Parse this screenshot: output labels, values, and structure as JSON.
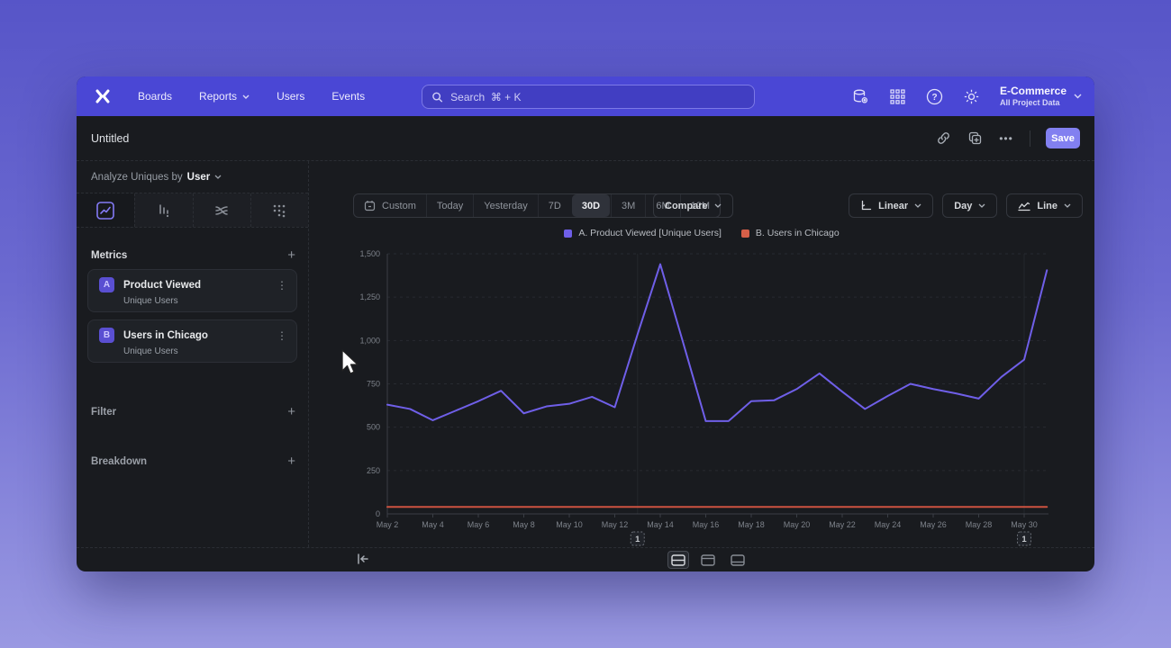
{
  "colors": {
    "accent": "#4a47d5",
    "line_a": "#6f5fe8",
    "line_b": "#d65f48",
    "save": "#8280f0"
  },
  "nav": {
    "items": [
      "Boards",
      "Reports",
      "Users",
      "Events"
    ],
    "search_placeholder": "Search  ⌘ + K",
    "project_name": "E-Commerce",
    "project_subtitle": "All Project Data"
  },
  "titlebar": {
    "title": "Untitled",
    "ellipsis": "•••",
    "save_label": "Save"
  },
  "sidebar": {
    "analyze_prefix": "Analyze Uniques by",
    "analyze_value": "User",
    "metrics_label": "Metrics",
    "metrics": [
      {
        "badge": "A",
        "name": "Product Viewed",
        "subtitle": "Unique Users"
      },
      {
        "badge": "B",
        "name": "Users in Chicago",
        "subtitle": "Unique Users"
      }
    ],
    "filter_label": "Filter",
    "breakdown_label": "Breakdown",
    "kebab": "⋮",
    "plus": "+"
  },
  "toolbar": {
    "ranges": [
      "Custom",
      "Today",
      "Yesterday",
      "7D",
      "30D",
      "3M",
      "6M",
      "12M"
    ],
    "selected_range": "30D",
    "compare_label": "Compare",
    "scale_label": "Linear",
    "interval_label": "Day",
    "chart_type_label": "Line"
  },
  "legend": [
    {
      "label": "A. Product Viewed [Unique Users]",
      "color": "#6f5fe8"
    },
    {
      "label": "B. Users in Chicago",
      "color": "#d65f48"
    }
  ],
  "chart_data": {
    "type": "line",
    "title": "",
    "xlabel": "",
    "ylabel": "",
    "ylim": [
      0,
      1500
    ],
    "grid": "horizontal-dashed",
    "legend_position": "top-center",
    "x": [
      "May 2",
      "May 3",
      "May 4",
      "May 5",
      "May 6",
      "May 7",
      "May 8",
      "May 9",
      "May 10",
      "May 11",
      "May 12",
      "May 13",
      "May 14",
      "May 15",
      "May 16",
      "May 17",
      "May 18",
      "May 19",
      "May 20",
      "May 21",
      "May 22",
      "May 23",
      "May 24",
      "May 25",
      "May 26",
      "May 27",
      "May 28",
      "May 29",
      "May 30",
      "May 31"
    ],
    "xtick_labels": [
      "May 2",
      "May 4",
      "May 6",
      "May 8",
      "May 10",
      "May 12",
      "May 14",
      "May 16",
      "May 18",
      "May 20",
      "May 22",
      "May 24",
      "May 26",
      "May 28",
      "May 30"
    ],
    "yticks": [
      {
        "value": 0,
        "label": "0"
      },
      {
        "value": 250,
        "label": "250"
      },
      {
        "value": 500,
        "label": "500"
      },
      {
        "value": 750,
        "label": "750"
      },
      {
        "value": 1000,
        "label": "1,000"
      },
      {
        "value": 1250,
        "label": "1,250"
      },
      {
        "value": 1500,
        "label": "1,500"
      }
    ],
    "series": [
      {
        "name": "A. Product Viewed [Unique Users]",
        "color": "#6f5fe8",
        "values": [
          630,
          605,
          540,
          595,
          650,
          710,
          580,
          620,
          635,
          675,
          615,
          1035,
          1440,
          990,
          535,
          535,
          650,
          655,
          720,
          810,
          705,
          605,
          680,
          750,
          720,
          695,
          665,
          790,
          890,
          1405
        ]
      },
      {
        "name": "B. Users in Chicago",
        "color": "#cd5340",
        "values": [
          40,
          40,
          40,
          40,
          40,
          40,
          40,
          40,
          40,
          40,
          40,
          40,
          40,
          40,
          40,
          40,
          40,
          40,
          40,
          40,
          40,
          40,
          40,
          40,
          40,
          40,
          40,
          40,
          40,
          40
        ]
      }
    ],
    "annotations": [
      {
        "index": 11,
        "label": "1"
      },
      {
        "index": 28,
        "label": "1"
      }
    ]
  },
  "footer": {
    "layout_icons": [
      "split-rows",
      "panel-top",
      "panel-bottom"
    ]
  }
}
